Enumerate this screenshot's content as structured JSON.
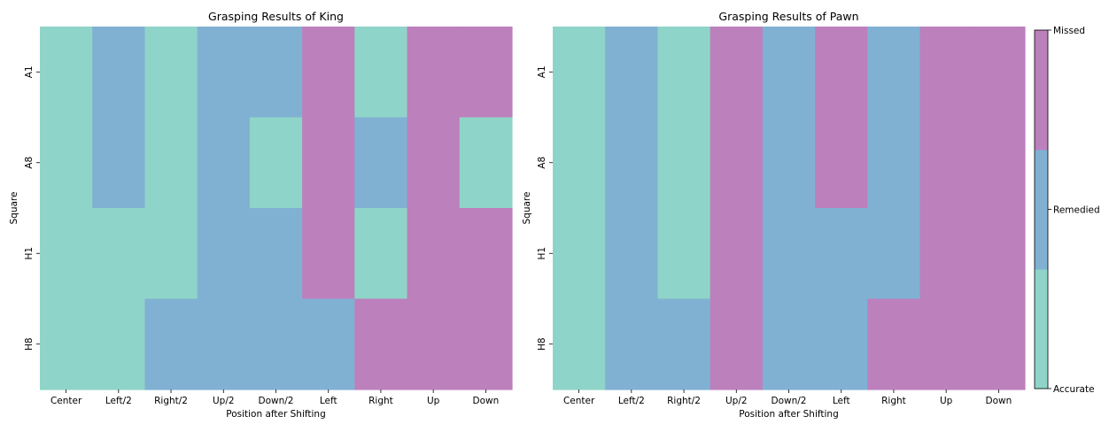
{
  "colors": {
    "Accurate": "#8fd4c8",
    "Remedied": "#80b1d3",
    "Missed": "#bc80bd",
    "background": "#ffffff",
    "text": "#000000"
  },
  "colorbar": {
    "labels": [
      "Missed",
      "Remedied",
      "Accurate"
    ]
  },
  "chart_data": [
    {
      "type": "heatmap",
      "title": "Grasping Results of King",
      "xlabel": "Position after Shifting",
      "ylabel": "Square",
      "x": [
        "Center",
        "Left/2",
        "Right/2",
        "Up/2",
        "Down/2",
        "Left",
        "Right",
        "Up",
        "Down"
      ],
      "y": [
        "A1",
        "A8",
        "H1",
        "H8"
      ],
      "categories": [
        "Accurate",
        "Remedied",
        "Missed"
      ],
      "values": [
        [
          "Accurate",
          "Remedied",
          "Accurate",
          "Remedied",
          "Remedied",
          "Missed",
          "Accurate",
          "Missed",
          "Missed"
        ],
        [
          "Accurate",
          "Remedied",
          "Accurate",
          "Remedied",
          "Accurate",
          "Missed",
          "Remedied",
          "Missed",
          "Accurate"
        ],
        [
          "Accurate",
          "Accurate",
          "Accurate",
          "Remedied",
          "Remedied",
          "Missed",
          "Accurate",
          "Missed",
          "Missed"
        ],
        [
          "Accurate",
          "Accurate",
          "Remedied",
          "Remedied",
          "Remedied",
          "Remedied",
          "Missed",
          "Missed",
          "Missed"
        ]
      ]
    },
    {
      "type": "heatmap",
      "title": "Grasping Results of Pawn",
      "xlabel": "Position after Shifting",
      "ylabel": "Square",
      "x": [
        "Center",
        "Left/2",
        "Right/2",
        "Up/2",
        "Down/2",
        "Left",
        "Right",
        "Up",
        "Down"
      ],
      "y": [
        "A1",
        "A8",
        "H1",
        "H8"
      ],
      "categories": [
        "Accurate",
        "Remedied",
        "Missed"
      ],
      "values": [
        [
          "Accurate",
          "Remedied",
          "Accurate",
          "Missed",
          "Remedied",
          "Missed",
          "Remedied",
          "Missed",
          "Missed"
        ],
        [
          "Accurate",
          "Remedied",
          "Accurate",
          "Missed",
          "Remedied",
          "Missed",
          "Remedied",
          "Missed",
          "Missed"
        ],
        [
          "Accurate",
          "Remedied",
          "Accurate",
          "Missed",
          "Remedied",
          "Remedied",
          "Remedied",
          "Missed",
          "Missed"
        ],
        [
          "Accurate",
          "Remedied",
          "Remedied",
          "Missed",
          "Remedied",
          "Remedied",
          "Missed",
          "Missed",
          "Missed"
        ]
      ]
    }
  ]
}
